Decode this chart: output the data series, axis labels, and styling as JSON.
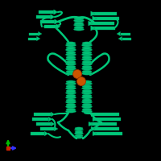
{
  "bg_color": "#000000",
  "protein_color": "#00C87A",
  "protein_dark": "#009960",
  "ligand_color": "#CC5500",
  "ligand_dark": "#993300",
  "axis_x_color": "#3333FF",
  "axis_y_color": "#00BB00",
  "axis_origin_color": "#CC2200",
  "figsize": [
    2.0,
    2.0
  ],
  "dpi": 100
}
